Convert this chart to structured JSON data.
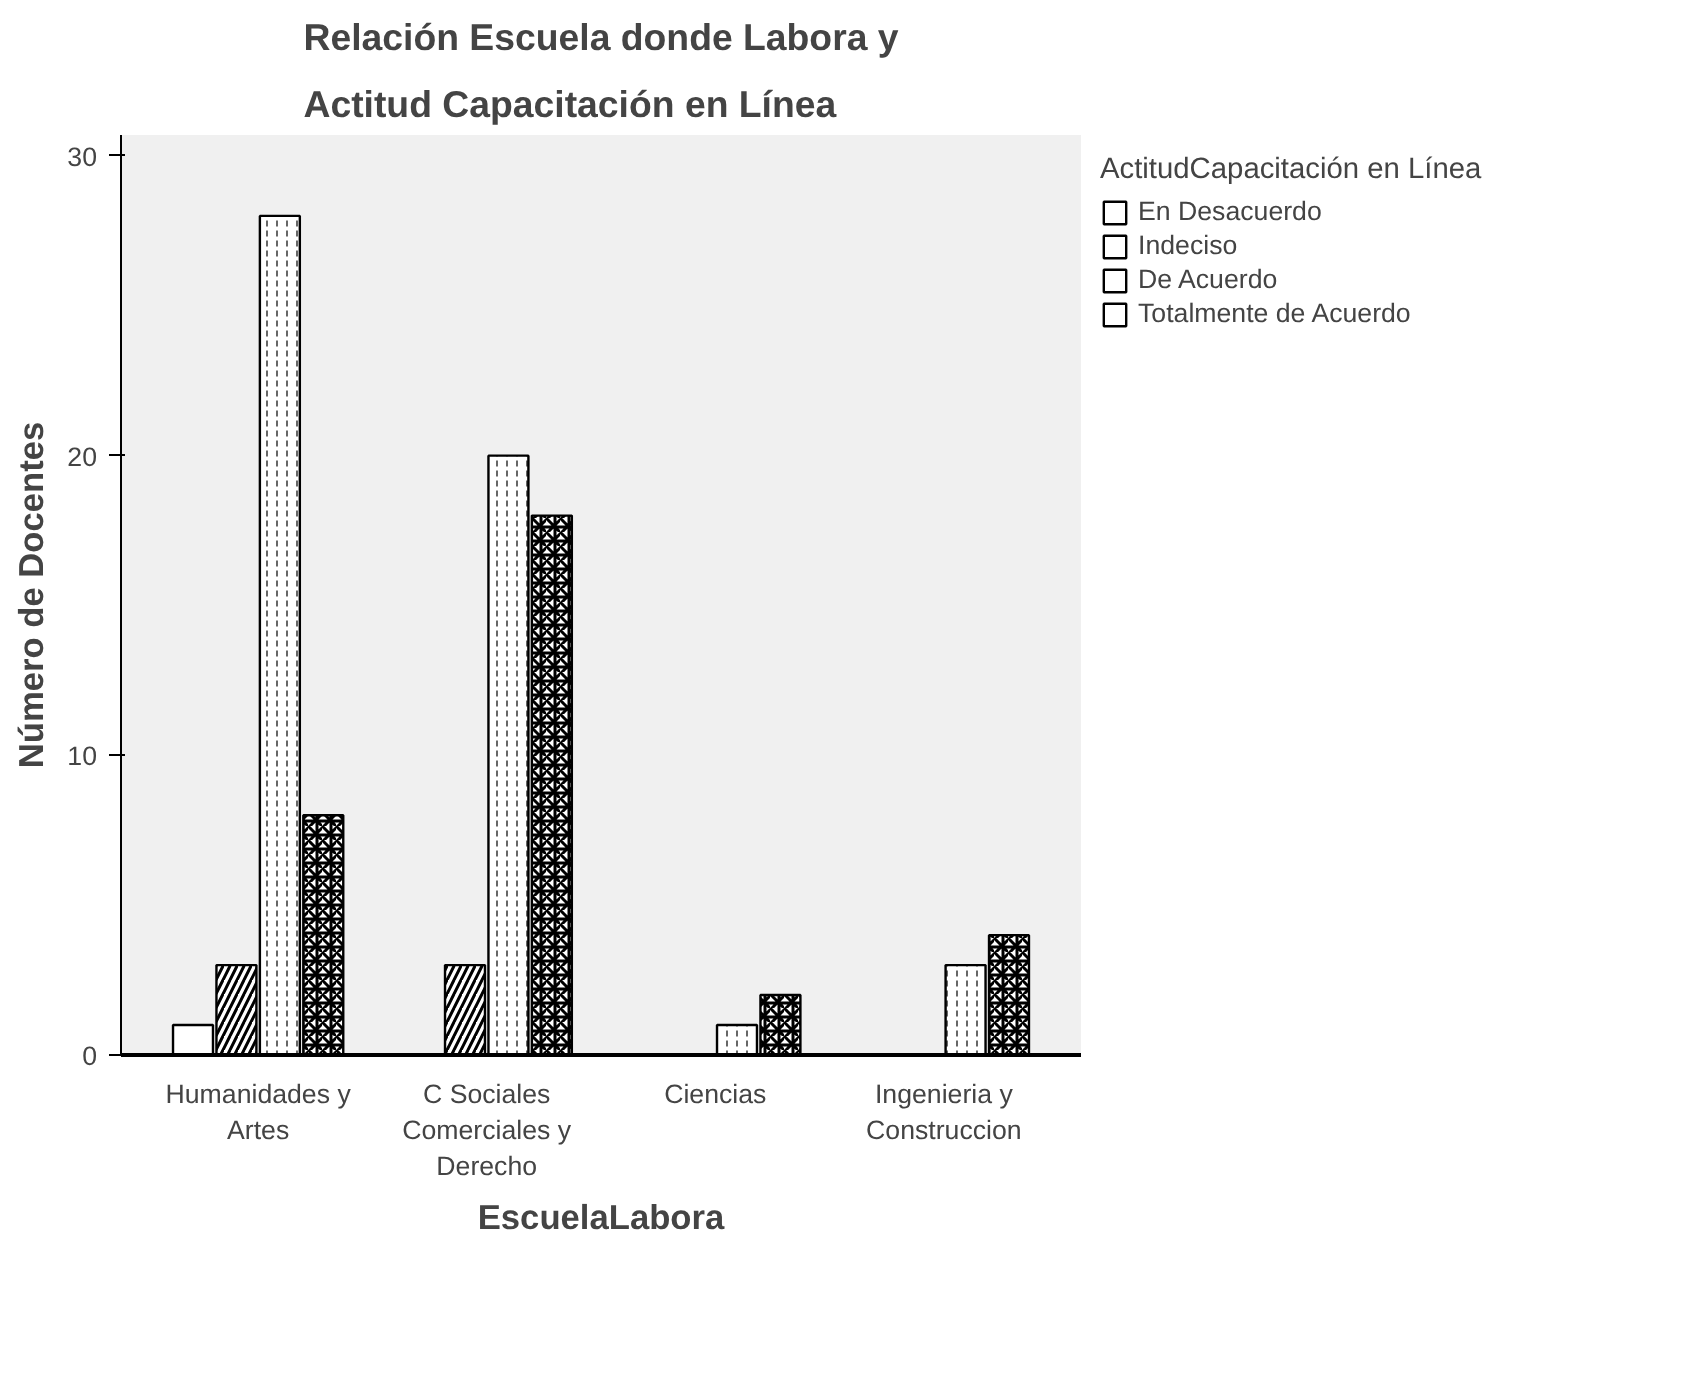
{
  "chart_data": {
    "type": "bar",
    "title": "Relación Escuela donde Labora y Actitud Capacitación en Línea",
    "xlabel": "EscuelaLabora",
    "ylabel": "Número de Docentes",
    "legend_title": "ActitudCapacitación en Línea",
    "categories": [
      "Humanidades y Artes",
      "C Sociales Comerciales y Derecho",
      "Ciencias",
      "Ingenieria y Construccion"
    ],
    "series": [
      {
        "name": "En Desacuerdo",
        "color": "#ffffff",
        "values": [
          1,
          null,
          null,
          null
        ]
      },
      {
        "name": "Indeciso",
        "color": "#ffffff",
        "values": [
          3,
          3,
          null,
          null
        ]
      },
      {
        "name": "De Acuerdo",
        "color": "#ffffff",
        "values": [
          28,
          20,
          1,
          3
        ]
      },
      {
        "name": "Totalmente de Acuerdo",
        "color": "#ffffff",
        "values": [
          8,
          18,
          2,
          4
        ]
      }
    ],
    "ylim": [
      0,
      30.7
    ],
    "yticks": [
      0,
      10,
      20,
      30
    ],
    "grid": false,
    "legend": "top right"
  }
}
